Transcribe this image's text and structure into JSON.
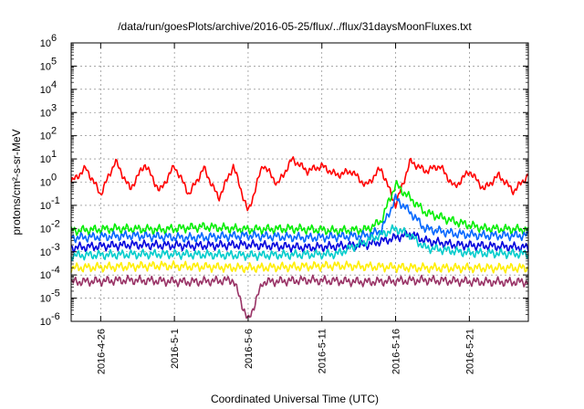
{
  "chart_data": {
    "type": "line",
    "title": "/data/run/goesPlots/archive/2016-05-25/flux/../flux/31daysMoonFluxes.txt",
    "xlabel": "Coordinated Universal Time (UTC)",
    "ylabel": "protons/cm²-s-sr-MeV",
    "y_scale": "log",
    "ylim": [
      1e-06,
      1000000.0
    ],
    "xlim": [
      "2016-04-24",
      "2016-05-25"
    ],
    "grid": true,
    "legend": "none",
    "x_ticks": [
      "2016-4-26",
      "2016-5-1",
      "2016-5-6",
      "2016-5-11",
      "2016-5-16",
      "2016-5-21"
    ],
    "y_ticks": [
      {
        "base": "10",
        "exp": "-6"
      },
      {
        "base": "10",
        "exp": "-5"
      },
      {
        "base": "10",
        "exp": "-4"
      },
      {
        "base": "10",
        "exp": "-3"
      },
      {
        "base": "10",
        "exp": "-2"
      },
      {
        "base": "10",
        "exp": "-1"
      },
      {
        "base": "10",
        "exp": "0"
      },
      {
        "base": "10",
        "exp": "1"
      },
      {
        "base": "10",
        "exp": "2"
      },
      {
        "base": "10",
        "exp": "3"
      },
      {
        "base": "10",
        "exp": "4"
      },
      {
        "base": "10",
        "exp": "5"
      },
      {
        "base": "10",
        "exp": "6"
      }
    ],
    "series": [
      {
        "color": "#ff0000",
        "x": [
          "2016-04-24",
          "2016-04-25",
          "2016-04-26",
          "2016-04-27",
          "2016-04-28",
          "2016-04-29",
          "2016-04-30",
          "2016-05-01",
          "2016-05-02",
          "2016-05-03",
          "2016-05-04",
          "2016-05-05",
          "2016-05-06",
          "2016-05-07",
          "2016-05-08",
          "2016-05-09",
          "2016-05-10",
          "2016-05-11",
          "2016-05-12",
          "2016-05-13",
          "2016-05-14",
          "2016-05-15",
          "2016-05-16",
          "2016-05-17",
          "2016-05-18",
          "2016-05-19",
          "2016-05-20",
          "2016-05-21",
          "2016-05-22",
          "2016-05-23",
          "2016-05-24",
          "2016-05-25"
        ],
        "values": [
          1.0,
          4.0,
          0.3,
          8.0,
          0.5,
          6.0,
          0.4,
          5.0,
          0.3,
          4.0,
          0.2,
          5.0,
          0.05,
          6.0,
          0.8,
          10.0,
          3.0,
          5.0,
          2.0,
          3.0,
          0.7,
          4.0,
          0.1,
          8.0,
          3.0,
          5.0,
          0.6,
          3.0,
          0.5,
          2.0,
          0.4,
          2.0
        ]
      },
      {
        "color": "#00ee00",
        "x": [
          "2016-04-24",
          "2016-04-27",
          "2016-04-30",
          "2016-05-03",
          "2016-05-06",
          "2016-05-09",
          "2016-05-12",
          "2016-05-14",
          "2016-05-15",
          "2016-05-16",
          "2016-05-17",
          "2016-05-18",
          "2016-05-20",
          "2016-05-22",
          "2016-05-25"
        ],
        "values": [
          0.008,
          0.01,
          0.009,
          0.012,
          0.009,
          0.01,
          0.008,
          0.009,
          0.02,
          0.8,
          0.2,
          0.05,
          0.02,
          0.01,
          0.009
        ]
      },
      {
        "color": "#0066ff",
        "x": [
          "2016-04-24",
          "2016-04-28",
          "2016-05-02",
          "2016-05-06",
          "2016-05-10",
          "2016-05-14",
          "2016-05-15",
          "2016-05-16",
          "2016-05-17",
          "2016-05-18",
          "2016-05-20",
          "2016-05-22",
          "2016-05-25"
        ],
        "values": [
          0.004,
          0.005,
          0.004,
          0.005,
          0.004,
          0.005,
          0.008,
          0.2,
          0.05,
          0.01,
          0.006,
          0.005,
          0.005
        ]
      },
      {
        "color": "#0000dd",
        "x": [
          "2016-04-24",
          "2016-04-28",
          "2016-05-02",
          "2016-05-06",
          "2016-05-10",
          "2016-05-14",
          "2016-05-16",
          "2016-05-17",
          "2016-05-18",
          "2016-05-20",
          "2016-05-22",
          "2016-05-25"
        ],
        "values": [
          0.0015,
          0.002,
          0.0018,
          0.002,
          0.0015,
          0.002,
          0.004,
          0.006,
          0.003,
          0.002,
          0.0018,
          0.0015
        ]
      },
      {
        "color": "#00cccc",
        "x": [
          "2016-04-24",
          "2016-04-30",
          "2016-05-06",
          "2016-05-12",
          "2016-05-16",
          "2016-05-17",
          "2016-05-18",
          "2016-05-21",
          "2016-05-25"
        ],
        "values": [
          0.0007,
          0.0008,
          0.0007,
          0.0008,
          0.01,
          0.005,
          0.0015,
          0.0009,
          0.0008
        ]
      },
      {
        "color": "#ffee00",
        "x": [
          "2016-04-24",
          "2016-04-30",
          "2016-05-06",
          "2016-05-12",
          "2016-05-18",
          "2016-05-25"
        ],
        "values": [
          0.0002,
          0.00025,
          0.0002,
          0.00025,
          0.0002,
          0.0002
        ]
      },
      {
        "color": "#993366",
        "x": [
          "2016-04-24",
          "2016-04-28",
          "2016-05-02",
          "2016-05-05",
          "2016-05-06",
          "2016-05-07",
          "2016-05-10",
          "2016-05-14",
          "2016-05-18",
          "2016-05-22",
          "2016-05-25"
        ],
        "values": [
          5e-05,
          6e-05,
          5e-05,
          6e-05,
          1e-06,
          5e-05,
          6e-05,
          5e-05,
          6e-05,
          5e-05,
          5e-05
        ]
      }
    ]
  }
}
